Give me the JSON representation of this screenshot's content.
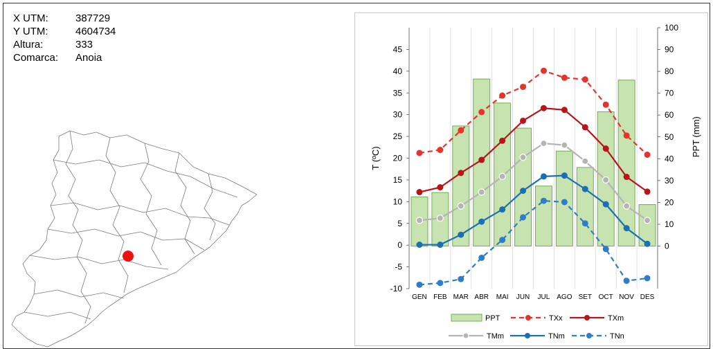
{
  "info": {
    "rows": [
      {
        "label": "X UTM:",
        "value": "387729"
      },
      {
        "label": "Y UTM:",
        "value": "4604734"
      },
      {
        "label": "Altura:",
        "value": "333"
      },
      {
        "label": "Comarca:",
        "value": "Anoia"
      }
    ]
  },
  "map": {
    "marker_color": "#ee1111"
  },
  "chart_data": {
    "type": "bar+line",
    "categories": [
      "GEN",
      "FEB",
      "MAR",
      "ABR",
      "MAI",
      "JUN",
      "JUL",
      "AGO",
      "SET",
      "OCT",
      "NOV",
      "DES"
    ],
    "xlabel": "",
    "ylabel_left": "T (ºC)",
    "ylabel_right": "PPT (mm)",
    "ylim_left": [
      -10,
      50
    ],
    "yticks_left": [
      -10,
      -5,
      0,
      5,
      10,
      15,
      20,
      25,
      30,
      35,
      40,
      45
    ],
    "ylim_right": [
      0,
      100
    ],
    "yticks_right": [
      0,
      10,
      20,
      30,
      40,
      50,
      60,
      70,
      80,
      90,
      100
    ],
    "bars": {
      "name": "PPT",
      "axis": "right",
      "color_fill": "#c6e3b0",
      "color_stroke": "#6fb04f",
      "values": [
        22.5,
        24.5,
        55,
        76.5,
        65.5,
        54,
        27.5,
        43.5,
        36,
        61.5,
        76,
        19
      ]
    },
    "series": [
      {
        "name": "TXx",
        "color": "#e8332b",
        "dash": true,
        "values": [
          21.2,
          21.9,
          26.4,
          30.6,
          34.4,
          36.4,
          40.1,
          38.5,
          38.1,
          32.3,
          25.2,
          20.8
        ]
      },
      {
        "name": "TXm",
        "color": "#b8141a",
        "dash": false,
        "values": [
          12.2,
          13.3,
          16.6,
          19.6,
          24.0,
          28.6,
          31.5,
          31.1,
          27.1,
          22.2,
          15.7,
          12.3
        ]
      },
      {
        "name": "TMm",
        "color": "#b4b4b4",
        "dash": false,
        "values": [
          5.7,
          6.2,
          9.0,
          12.2,
          15.8,
          20.2,
          23.4,
          23.0,
          19.3,
          15.0,
          9.0,
          5.7
        ]
      },
      {
        "name": "TNm",
        "color": "#1a6fb5",
        "dash": false,
        "values": [
          0.1,
          0.1,
          2.4,
          5.4,
          8.2,
          12.5,
          15.8,
          16.0,
          12.9,
          9.4,
          3.9,
          0.3
        ]
      },
      {
        "name": "TNn",
        "color": "#2e7dc6",
        "dash": true,
        "values": [
          -9.1,
          -8.7,
          -7.8,
          -2.9,
          1.2,
          6.4,
          10.2,
          9.9,
          5.0,
          -0.9,
          -8.2,
          -7.6
        ]
      }
    ],
    "legend_placement": "bottom",
    "grid": "vertical"
  }
}
